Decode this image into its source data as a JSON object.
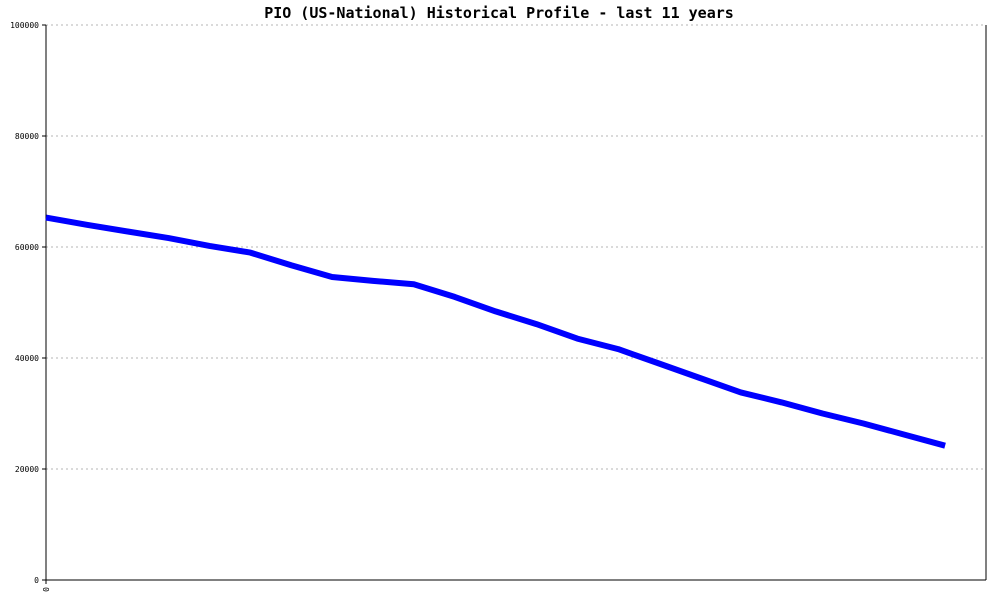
{
  "chart_data": {
    "type": "line",
    "title": "PIO (US-National) Historical Profile - last 11 years",
    "xlabel": "",
    "ylabel": "",
    "x_tick_labels": [
      "0"
    ],
    "y_tick_labels": [
      "0",
      "20000",
      "40000",
      "60000",
      "80000",
      "100000"
    ],
    "y_ticks": [
      0,
      20000,
      40000,
      60000,
      80000,
      100000
    ],
    "ylim": [
      0,
      100000
    ],
    "grid": true,
    "legend": "none",
    "series": [
      {
        "color": "#0000ff",
        "x": [
          0,
          0.5,
          1,
          1.5,
          2,
          2.5,
          3,
          3.5,
          4,
          4.5,
          5,
          5.5,
          6,
          6.5,
          7,
          7.5,
          8,
          8.5,
          9,
          9.5,
          10,
          10.5,
          11
        ],
        "values": [
          65300,
          64000,
          62800,
          61600,
          60200,
          59000,
          56700,
          54600,
          53900,
          53300,
          51000,
          48400,
          46100,
          43500,
          41600,
          39000,
          36400,
          33800,
          32000,
          30000,
          28200,
          26200,
          24200
        ]
      }
    ],
    "xlim": [
      0,
      11.5
    ]
  }
}
